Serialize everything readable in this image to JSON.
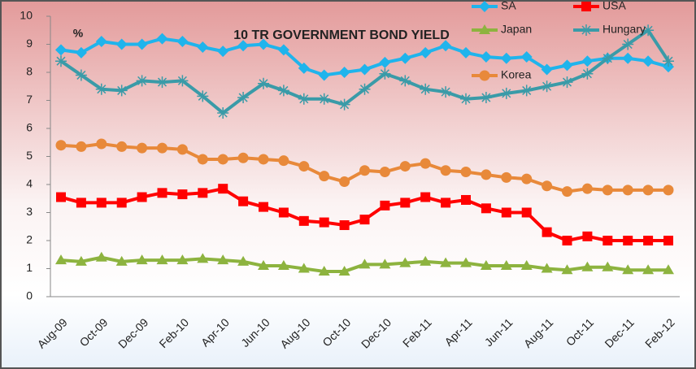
{
  "chart_data": {
    "type": "line",
    "title": "10 TR GOVERNMENT BOND YIELD",
    "y_label": "%",
    "categories": [
      "Aug-09",
      null,
      "Oct-09",
      null,
      "Dec-09",
      null,
      "Feb-10",
      null,
      "Apr-10",
      null,
      "Jun-10",
      null,
      "Aug-10",
      null,
      "Oct-10",
      null,
      "Dec-10",
      null,
      "Feb-11",
      null,
      "Apr-11",
      null,
      "Jun-11",
      null,
      "Aug-11",
      null,
      "Oct-11",
      null,
      "Dec-11",
      null,
      "Feb-12"
    ],
    "series": [
      {
        "name": "SA",
        "color": "#1fb4ec",
        "marker": "diamond",
        "values": [
          8.8,
          8.7,
          9.1,
          9.0,
          9.0,
          9.2,
          9.1,
          8.9,
          8.75,
          8.95,
          9.0,
          8.8,
          8.15,
          7.9,
          8.0,
          8.1,
          8.35,
          8.5,
          8.7,
          8.95,
          8.7,
          8.55,
          8.5,
          8.55,
          8.1,
          8.25,
          8.4,
          8.5,
          8.5,
          8.4,
          8.2
        ]
      },
      {
        "name": "USA",
        "color": "#ff0000",
        "marker": "square",
        "values": [
          3.55,
          3.35,
          3.35,
          3.35,
          3.55,
          3.7,
          3.65,
          3.7,
          3.85,
          3.4,
          3.2,
          3.0,
          2.7,
          2.65,
          2.55,
          2.75,
          3.25,
          3.35,
          3.55,
          3.35,
          3.45,
          3.15,
          3.0,
          3.0,
          2.3,
          2.0,
          2.15,
          2.0,
          2.0,
          2.0,
          2.0
        ]
      },
      {
        "name": "Japan",
        "color": "#8db33f",
        "marker": "triangle",
        "values": [
          1.3,
          1.25,
          1.4,
          1.25,
          1.3,
          1.3,
          1.3,
          1.35,
          1.3,
          1.25,
          1.1,
          1.1,
          1.0,
          0.9,
          0.9,
          1.15,
          1.15,
          1.2,
          1.25,
          1.2,
          1.2,
          1.1,
          1.1,
          1.1,
          1.0,
          0.95,
          1.05,
          1.05,
          0.95,
          0.95,
          0.95
        ]
      },
      {
        "name": "Hungary",
        "color": "#3a9ba8",
        "marker": "star",
        "values": [
          8.4,
          7.9,
          7.4,
          7.35,
          7.7,
          7.65,
          7.7,
          7.15,
          6.55,
          7.1,
          7.6,
          7.35,
          7.05,
          7.05,
          6.85,
          7.4,
          7.95,
          7.7,
          7.4,
          7.3,
          7.05,
          7.1,
          7.25,
          7.35,
          7.5,
          7.65,
          7.95,
          8.5,
          9.0,
          9.5,
          8.4
        ]
      },
      {
        "name": "Korea",
        "color": "#e8893a",
        "marker": "circle",
        "values": [
          5.4,
          5.35,
          5.45,
          5.35,
          5.3,
          5.3,
          5.25,
          4.9,
          4.9,
          4.95,
          4.9,
          4.85,
          4.65,
          4.3,
          4.1,
          4.5,
          4.45,
          4.65,
          4.75,
          4.5,
          4.45,
          4.35,
          4.25,
          4.2,
          3.95,
          3.75,
          3.85,
          3.8,
          3.8,
          3.8,
          3.8
        ]
      }
    ],
    "ylim": [
      0,
      10
    ],
    "yticks": [
      0,
      1,
      2,
      3,
      4,
      5,
      6,
      7,
      8,
      9,
      10
    ],
    "grid": false
  }
}
